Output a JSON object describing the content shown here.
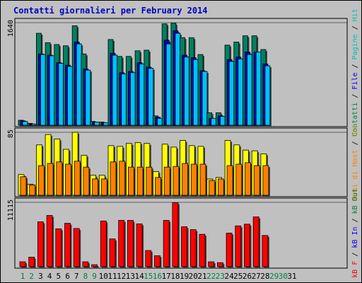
{
  "title": "Contatti giornalieri per February 2014",
  "legend": {
    "panel1": [
      {
        "text": "Contatti",
        "color": "#008040"
      },
      {
        "text": " / ",
        "color": "#000000"
      },
      {
        "text": "File",
        "color": "#0000ff"
      },
      {
        "text": " / ",
        "color": "#000000"
      },
      {
        "text": "Pagine",
        "color": "#00c0c0"
      },
      {
        "text": " / ",
        "color": "#000000"
      },
      {
        "text": "Hit",
        "color": "#00c0c0"
      }
    ],
    "panel2": [
      {
        "text": "Nomi di Host",
        "color": "#ff8000"
      },
      {
        "text": " / ",
        "color": "#000000"
      },
      {
        "text": "Out",
        "color": "#c0a000"
      }
    ],
    "panel3": [
      {
        "text": "kB F",
        "color": "#ff0000"
      },
      {
        "text": " / ",
        "color": "#000000"
      },
      {
        "text": "kB In",
        "color": "#0000ff"
      },
      {
        "text": " / ",
        "color": "#000000"
      },
      {
        "text": "kB Out",
        "color": "#008040"
      }
    ]
  },
  "colors": {
    "hits": "#008060",
    "files": "#0000c0",
    "pages": "#00c0ff",
    "sites": "#ff8000",
    "visits": "#ffff00",
    "kbytes": "#ff0000",
    "weekday_label": "#000000",
    "weekend_label": "#008040"
  },
  "chart_data": {
    "type": "bar",
    "title": "Contatti giornalieri per February 2014",
    "x": [
      1,
      2,
      3,
      4,
      5,
      6,
      7,
      8,
      9,
      10,
      11,
      12,
      13,
      14,
      15,
      16,
      17,
      18,
      19,
      20,
      21,
      22,
      23,
      24,
      25,
      26,
      27,
      28,
      29,
      30,
      31
    ],
    "weekend_days": [
      1,
      2,
      8,
      9,
      15,
      16,
      22,
      23,
      29,
      30
    ],
    "panels": [
      {
        "name": "panel1",
        "ymax_label": "1640",
        "ymax": 1640,
        "series": [
          {
            "name": "Contatti",
            "key": "hits",
            "values": [
              80,
              30,
              1470,
              1320,
              1290,
              1270,
              1590,
              1140,
              60,
              50,
              1370,
              1100,
              1100,
              1190,
              1200,
              150,
              1620,
              1630,
              1400,
              1400,
              1130,
              200,
              200,
              1280,
              1330,
              1430,
              1430,
              1210,
              0,
              0,
              0
            ]
          },
          {
            "name": "File",
            "key": "files",
            "values": [
              70,
              20,
              1140,
              1120,
              1000,
              960,
              1330,
              900,
              50,
              40,
              1150,
              840,
              860,
              1000,
              930,
              130,
              1360,
              1510,
              1120,
              1080,
              870,
              110,
              150,
              1050,
              1090,
              1170,
              1170,
              980,
              0,
              0,
              0
            ]
          },
          {
            "name": "Pagine",
            "key": "pages",
            "values": [
              60,
              20,
              1130,
              1110,
              990,
              940,
              1300,
              880,
              50,
              40,
              1120,
              820,
              840,
              980,
              910,
              110,
              1300,
              1470,
              1090,
              1050,
              860,
              110,
              140,
              1020,
              1060,
              1130,
              1170,
              950,
              0,
              0,
              0
            ]
          }
        ]
      },
      {
        "name": "panel2",
        "ymax_label": "85",
        "ymax": 85,
        "series": [
          {
            "name": "Out",
            "key": "visits",
            "values": [
              28,
              15,
              68,
              82,
              76,
              62,
              85,
              54,
              27,
              27,
              67,
              66,
              70,
              71,
              70,
              32,
              69,
              65,
              74,
              67,
              66,
              22,
              24,
              74,
              68,
              61,
              60,
              56,
              0,
              0,
              0
            ]
          },
          {
            "name": "Nomi di Host",
            "key": "sites",
            "values": [
              25,
              14,
              40,
              43,
              45,
              42,
              46,
              38,
              22,
              22,
              45,
              46,
              38,
              38,
              38,
              24,
              38,
              39,
              43,
              42,
              42,
              20,
              22,
              40,
              42,
              44,
              40,
              40,
              0,
              0,
              0
            ]
          }
        ]
      },
      {
        "name": "panel3",
        "ymax_label": "11115",
        "ymax": 11115,
        "series": [
          {
            "name": "kB F",
            "key": "kbytes",
            "values": [
              850,
              1650,
              7750,
              8850,
              6550,
              7500,
              6600,
              850,
              350,
              7900,
              4800,
              8000,
              8000,
              7400,
              2800,
              1900,
              8000,
              11050,
              6900,
              6400,
              5600,
              850,
              700,
              5800,
              7050,
              7350,
              8600,
              5400,
              0,
              0,
              0
            ]
          }
        ]
      }
    ]
  }
}
